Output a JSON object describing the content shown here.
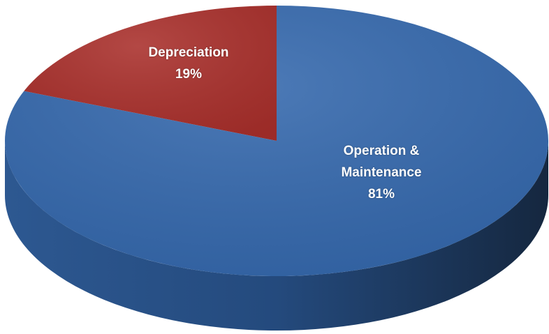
{
  "chart_data": {
    "type": "pie",
    "categories": [
      "Depreciation",
      "Operation & Maintenance"
    ],
    "values": [
      19,
      81
    ],
    "value_labels": [
      "19%",
      "81%"
    ],
    "colors": [
      "#a92f2b",
      "#3468ad"
    ]
  }
}
